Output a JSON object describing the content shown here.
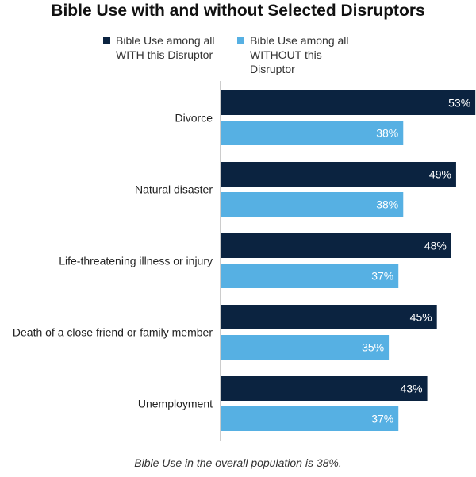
{
  "chart_data": {
    "type": "bar",
    "orientation": "horizontal",
    "title": "Bible Use with and without Selected Disruptors",
    "categories": [
      "Divorce",
      "Natural disaster",
      "Life-threatening illness or injury",
      "Death of a close friend or family member",
      "Unemployment"
    ],
    "series": [
      {
        "name": "Bible Use among all WITH this Disruptor",
        "color": "#0b2340",
        "values": [
          53,
          49,
          48,
          45,
          43
        ],
        "labels": [
          "53%",
          "49%",
          "48%",
          "45%",
          "43%"
        ]
      },
      {
        "name": "Bible Use among all WITHOUT this Disruptor",
        "color": "#56b0e3",
        "values": [
          38,
          38,
          37,
          35,
          37
        ],
        "labels": [
          "38%",
          "38%",
          "37%",
          "35%",
          "37%"
        ]
      }
    ],
    "legend_position": "top",
    "grid": false,
    "value_unit": "%"
  },
  "legend": {
    "with_label": "Bible Use among all WITH this Disruptor",
    "without_label": "Bible Use among all WITHOUT this Disruptor"
  },
  "footnote": "Bible Use in the overall population is 38%.",
  "colors": {
    "with": "#0b2340",
    "without": "#56b0e3",
    "axis": "#999999"
  }
}
